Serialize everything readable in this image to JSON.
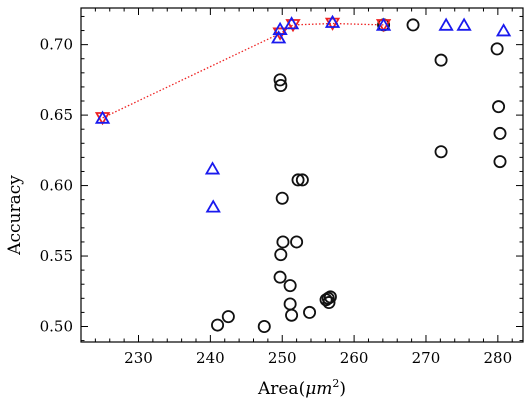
{
  "chart_data": {
    "type": "scatter",
    "title": "",
    "xlabel": "Area(",
    "xlabel_symbol": "μm",
    "xlabel_exp": "2",
    "xlabel_close": ")",
    "ylabel": "Accuracy",
    "xlim": [
      222,
      283.5
    ],
    "ylim": [
      0.489,
      0.726
    ],
    "xticks": [
      230,
      240,
      250,
      260,
      270,
      280
    ],
    "yticks": [
      0.5,
      0.55,
      0.6,
      0.65,
      0.7
    ],
    "xtick_labels": [
      "230",
      "240",
      "250",
      "260",
      "270",
      "280"
    ],
    "ytick_labels": [
      "0.50",
      "0.55",
      "0.60",
      "0.65",
      "0.70"
    ],
    "grid": false,
    "legend": null,
    "colors": {
      "circle": "#111111",
      "triangle_up": "#1a1aee",
      "triangle_down": "#ee2222",
      "frontier_line": "#ee2222"
    },
    "series": [
      {
        "marker": "circle",
        "points": [
          [
            241.0,
            0.501
          ],
          [
            242.5,
            0.507
          ],
          [
            247.5,
            0.5
          ],
          [
            249.7,
            0.675
          ],
          [
            249.8,
            0.671
          ],
          [
            249.8,
            0.551
          ],
          [
            249.7,
            0.535
          ],
          [
            250.0,
            0.591
          ],
          [
            250.1,
            0.56
          ],
          [
            251.1,
            0.529
          ],
          [
            251.1,
            0.516
          ],
          [
            251.3,
            0.508
          ],
          [
            252.0,
            0.56
          ],
          [
            252.2,
            0.604
          ],
          [
            252.8,
            0.604
          ],
          [
            253.8,
            0.51
          ],
          [
            256.1,
            0.519
          ],
          [
            256.4,
            0.52
          ],
          [
            256.7,
            0.521
          ],
          [
            256.5,
            0.517
          ],
          [
            264.1,
            0.714
          ],
          [
            268.2,
            0.714
          ],
          [
            272.1,
            0.689
          ],
          [
            272.1,
            0.624
          ],
          [
            279.9,
            0.697
          ],
          [
            280.1,
            0.656
          ],
          [
            280.3,
            0.637
          ],
          [
            280.3,
            0.617
          ]
        ]
      },
      {
        "marker": "triangle-up",
        "points": [
          [
            225.0,
            0.647
          ],
          [
            240.3,
            0.611
          ],
          [
            240.4,
            0.584
          ],
          [
            249.5,
            0.704
          ],
          [
            249.7,
            0.71
          ],
          [
            251.3,
            0.714
          ],
          [
            257.0,
            0.715
          ],
          [
            264.1,
            0.713
          ],
          [
            272.8,
            0.713
          ],
          [
            275.3,
            0.713
          ],
          [
            280.8,
            0.709
          ]
        ]
      },
      {
        "marker": "triangle-down",
        "points": [
          [
            225.0,
            0.649
          ],
          [
            249.7,
            0.709
          ],
          [
            251.5,
            0.715
          ],
          [
            257.0,
            0.716
          ],
          [
            264.1,
            0.715
          ]
        ]
      },
      {
        "marker": "dotted-line",
        "points": [
          [
            225.0,
            0.648
          ],
          [
            249.7,
            0.708
          ],
          [
            251.5,
            0.714
          ],
          [
            257.0,
            0.715
          ],
          [
            264.1,
            0.714
          ]
        ]
      }
    ]
  }
}
